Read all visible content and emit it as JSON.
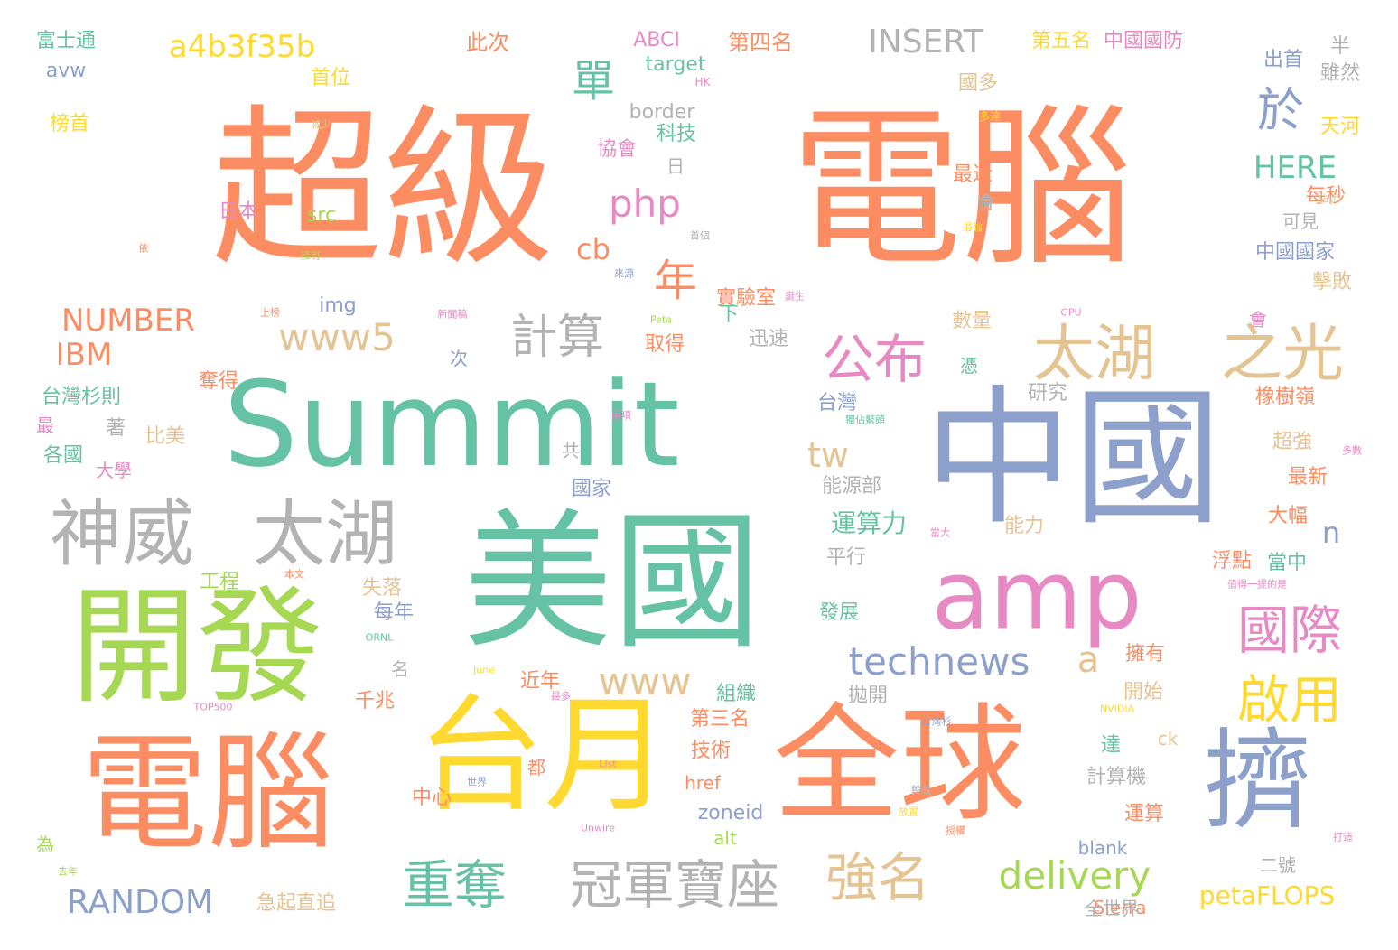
{
  "palette": {
    "orange": "#fc8d62",
    "teal": "#66c2a5",
    "blue": "#8da0cb",
    "pink": "#e78ac3",
    "green": "#a6d854",
    "yellow": "#ffd92f",
    "tan": "#e5c494",
    "gray": "#b3b3b3",
    "background": "#ffffff"
  },
  "words": [
    {
      "text": "超級",
      "c": "orange"
    },
    {
      "text": "電腦",
      "c": "orange"
    },
    {
      "text": "Summit",
      "c": "teal"
    },
    {
      "text": "中國",
      "c": "blue"
    },
    {
      "text": "美國",
      "c": "teal"
    },
    {
      "text": "amp",
      "c": "pink"
    },
    {
      "text": "開發",
      "c": "green"
    },
    {
      "text": "電腦",
      "c": "orange"
    },
    {
      "text": "台月",
      "c": "yellow"
    },
    {
      "text": "全球",
      "c": "orange"
    },
    {
      "text": "擠",
      "c": "blue"
    },
    {
      "text": "神威",
      "c": "gray"
    },
    {
      "text": "太湖",
      "c": "gray"
    },
    {
      "text": "太湖",
      "c": "tan"
    },
    {
      "text": "之光",
      "c": "tan"
    },
    {
      "text": "公布",
      "c": "pink"
    },
    {
      "text": "國際",
      "c": "pink"
    },
    {
      "text": "啟用",
      "c": "yellow"
    },
    {
      "text": "重奪",
      "c": "teal"
    },
    {
      "text": "冠軍寶座",
      "c": "gray"
    },
    {
      "text": "強名",
      "c": "tan"
    },
    {
      "text": "delivery",
      "c": "green"
    },
    {
      "text": "technews",
      "c": "blue"
    },
    {
      "text": "www",
      "c": "tan"
    },
    {
      "text": "www5",
      "c": "tan"
    },
    {
      "text": "計算",
      "c": "gray"
    },
    {
      "text": "a4b3f35b",
      "c": "yellow"
    },
    {
      "text": "INSERT",
      "c": "gray"
    },
    {
      "text": "單",
      "c": "teal"
    },
    {
      "text": "於",
      "c": "blue"
    },
    {
      "text": "php",
      "c": "pink"
    },
    {
      "text": "年",
      "c": "orange"
    },
    {
      "text": "cb",
      "c": "orange"
    },
    {
      "text": "HERE",
      "c": "teal"
    },
    {
      "text": "tw",
      "c": "tan"
    },
    {
      "text": "a",
      "c": "tan"
    },
    {
      "text": "n",
      "c": "blue"
    },
    {
      "text": "NUMBER",
      "c": "orange"
    },
    {
      "text": "IBM",
      "c": "orange"
    },
    {
      "text": "RANDOM",
      "c": "blue"
    },
    {
      "text": "petaFLOPS",
      "c": "yellow"
    },
    {
      "text": "運算力",
      "c": "teal"
    },
    {
      "text": "border",
      "c": "gray"
    },
    {
      "text": "第四名",
      "c": "orange"
    },
    {
      "text": "第五名",
      "c": "yellow"
    },
    {
      "text": "中國國防",
      "c": "pink"
    },
    {
      "text": "此次",
      "c": "orange"
    },
    {
      "text": "ABCI",
      "c": "pink"
    },
    {
      "text": "target",
      "c": "teal"
    },
    {
      "text": "富士通",
      "c": "teal"
    },
    {
      "text": "avw",
      "c": "blue"
    },
    {
      "text": "首位",
      "c": "yellow"
    },
    {
      "text": "榜首",
      "c": "yellow"
    },
    {
      "text": "科技",
      "c": "teal"
    },
    {
      "text": "協會",
      "c": "pink"
    },
    {
      "text": "出首",
      "c": "blue"
    },
    {
      "text": "半",
      "c": "gray"
    },
    {
      "text": "雖然",
      "c": "gray"
    },
    {
      "text": "國多",
      "c": "tan"
    },
    {
      "text": "天河",
      "c": "yellow"
    },
    {
      "text": "日本",
      "c": "pink"
    },
    {
      "text": "src",
      "c": "green"
    },
    {
      "text": "日",
      "c": "gray"
    },
    {
      "text": "最近",
      "c": "orange"
    },
    {
      "text": "會",
      "c": "gray"
    },
    {
      "text": "每秒",
      "c": "orange"
    },
    {
      "text": "可見",
      "c": "gray"
    },
    {
      "text": "中國國家",
      "c": "blue"
    },
    {
      "text": "擊敗",
      "c": "tan"
    },
    {
      "text": "img",
      "c": "blue"
    },
    {
      "text": "實驗室",
      "c": "orange"
    },
    {
      "text": "下",
      "c": "teal"
    },
    {
      "text": "會",
      "c": "pink"
    },
    {
      "text": "取得",
      "c": "orange"
    },
    {
      "text": "迅速",
      "c": "gray"
    },
    {
      "text": "數量",
      "c": "tan"
    },
    {
      "text": "憑",
      "c": "teal"
    },
    {
      "text": "次",
      "c": "blue"
    },
    {
      "text": "奪得",
      "c": "orange"
    },
    {
      "text": "台灣杉則",
      "c": "teal"
    },
    {
      "text": "台灣",
      "c": "blue"
    },
    {
      "text": "研究",
      "c": "gray"
    },
    {
      "text": "橡樹嶺",
      "c": "orange"
    },
    {
      "text": "最",
      "c": "pink"
    },
    {
      "text": "著",
      "c": "gray"
    },
    {
      "text": "比美",
      "c": "tan"
    },
    {
      "text": "超強",
      "c": "tan"
    },
    {
      "text": "各國",
      "c": "teal"
    },
    {
      "text": "大學",
      "c": "pink"
    },
    {
      "text": "共",
      "c": "gray"
    },
    {
      "text": "能源部",
      "c": "gray"
    },
    {
      "text": "最新",
      "c": "orange"
    },
    {
      "text": "國家",
      "c": "blue"
    },
    {
      "text": "大幅",
      "c": "orange"
    },
    {
      "text": "能力",
      "c": "tan"
    },
    {
      "text": "平行",
      "c": "gray"
    },
    {
      "text": "工程",
      "c": "green"
    },
    {
      "text": "浮點",
      "c": "orange"
    },
    {
      "text": "當中",
      "c": "teal"
    },
    {
      "text": "失落",
      "c": "tan"
    },
    {
      "text": "發展",
      "c": "teal"
    },
    {
      "text": "每年",
      "c": "blue"
    },
    {
      "text": "擁有",
      "c": "orange"
    },
    {
      "text": "名",
      "c": "gray"
    },
    {
      "text": "近年",
      "c": "orange"
    },
    {
      "text": "組織",
      "c": "teal"
    },
    {
      "text": "拋開",
      "c": "gray"
    },
    {
      "text": "開始",
      "c": "tan"
    },
    {
      "text": "千兆",
      "c": "orange"
    },
    {
      "text": "第三名",
      "c": "orange"
    },
    {
      "text": "技術",
      "c": "orange"
    },
    {
      "text": "達",
      "c": "teal"
    },
    {
      "text": "ck",
      "c": "tan"
    },
    {
      "text": "都",
      "c": "orange"
    },
    {
      "text": "href",
      "c": "orange"
    },
    {
      "text": "計算機",
      "c": "gray"
    },
    {
      "text": "中心",
      "c": "orange"
    },
    {
      "text": "運算",
      "c": "orange"
    },
    {
      "text": "zoneid",
      "c": "blue"
    },
    {
      "text": "alt",
      "c": "green"
    },
    {
      "text": "為",
      "c": "green"
    },
    {
      "text": "blank",
      "c": "blue"
    },
    {
      "text": "二號",
      "c": "gray"
    },
    {
      "text": "急起直追",
      "c": "tan"
    },
    {
      "text": "Sierra",
      "c": "orange"
    },
    {
      "text": "全世界",
      "c": "gray"
    },
    {
      "text": "HK",
      "c": "pink"
    },
    {
      "text": "減少",
      "c": "tan"
    },
    {
      "text": "多達",
      "c": "yellow"
    },
    {
      "text": "佔比",
      "c": "tan"
    },
    {
      "text": "最強",
      "c": "yellow"
    },
    {
      "text": "首個",
      "c": "gray"
    },
    {
      "text": "擁有",
      "c": "green"
    },
    {
      "text": "來源",
      "c": "blue"
    },
    {
      "text": "誕生",
      "c": "pink"
    },
    {
      "text": "新聞稿",
      "c": "pink"
    },
    {
      "text": "上榜",
      "c": "orange"
    },
    {
      "text": "Peta",
      "c": "green"
    },
    {
      "text": "GPU",
      "c": "pink"
    },
    {
      "text": "獨佔鰲頭",
      "c": "teal"
    },
    {
      "text": "兩項",
      "c": "pink"
    },
    {
      "text": "多數",
      "c": "pink"
    },
    {
      "text": "本文",
      "c": "orange"
    },
    {
      "text": "當大",
      "c": "pink"
    },
    {
      "text": "值得一提的是",
      "c": "pink"
    },
    {
      "text": "ORNL",
      "c": "teal"
    },
    {
      "text": "June",
      "c": "yellow"
    },
    {
      "text": "最多",
      "c": "pink"
    },
    {
      "text": "TOP500",
      "c": "pink"
    },
    {
      "text": "台灣杉",
      "c": "blue"
    },
    {
      "text": "NVIDIA",
      "c": "yellow"
    },
    {
      "text": "List",
      "c": "pink"
    },
    {
      "text": "世界",
      "c": "blue"
    },
    {
      "text": "轉載",
      "c": "gray"
    },
    {
      "text": "放置",
      "c": "yellow"
    },
    {
      "text": "授權",
      "c": "orange"
    },
    {
      "text": "Unwire",
      "c": "pink"
    },
    {
      "text": "打造",
      "c": "pink"
    },
    {
      "text": "去年",
      "c": "green"
    },
    {
      "text": "依",
      "c": "orange"
    }
  ]
}
